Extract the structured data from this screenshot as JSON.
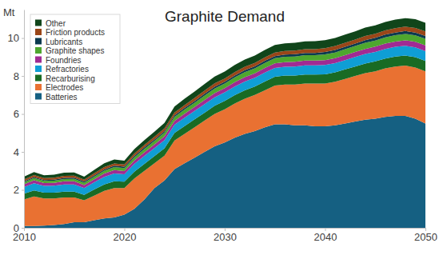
{
  "chart_data": {
    "type": "area",
    "title": "Graphite Demand",
    "ylabel": "Mt",
    "stacked": true,
    "legend": "upper left",
    "x": [
      2010,
      2011,
      2012,
      2013,
      2014,
      2015,
      2016,
      2017,
      2018,
      2019,
      2020,
      2021,
      2022,
      2023,
      2024,
      2025,
      2026,
      2027,
      2028,
      2029,
      2030,
      2031,
      2032,
      2033,
      2034,
      2035,
      2036,
      2037,
      2038,
      2039,
      2040,
      2041,
      2042,
      2043,
      2044,
      2045,
      2046,
      2047,
      2048,
      2049,
      2050
    ],
    "xlim": [
      2010,
      2050
    ],
    "xticks": [
      2010,
      2020,
      2030,
      2040,
      2050
    ],
    "ylim": [
      0,
      11.5
    ],
    "yticks": [
      0,
      2,
      4,
      6,
      8,
      10
    ],
    "series": [
      {
        "name": "Batteries",
        "color": "#156082",
        "values": [
          0.1,
          0.1,
          0.12,
          0.15,
          0.2,
          0.3,
          0.3,
          0.4,
          0.5,
          0.55,
          0.7,
          1.0,
          1.5,
          2.1,
          2.5,
          3.1,
          3.4,
          3.7,
          4.0,
          4.3,
          4.5,
          4.75,
          4.95,
          5.1,
          5.3,
          5.45,
          5.45,
          5.4,
          5.4,
          5.35,
          5.35,
          5.4,
          5.5,
          5.6,
          5.7,
          5.75,
          5.85,
          5.9,
          5.9,
          5.75,
          5.5
        ]
      },
      {
        "name": "Electrodes",
        "color": "#e97132",
        "values": [
          1.4,
          1.55,
          1.43,
          1.4,
          1.4,
          1.3,
          1.15,
          1.3,
          1.45,
          1.55,
          1.4,
          1.6,
          1.5,
          1.3,
          1.3,
          1.5,
          1.55,
          1.6,
          1.65,
          1.7,
          1.75,
          1.8,
          1.85,
          1.9,
          1.95,
          2.05,
          2.1,
          2.15,
          2.2,
          2.25,
          2.25,
          2.3,
          2.35,
          2.4,
          2.45,
          2.5,
          2.55,
          2.6,
          2.65,
          2.7,
          2.75
        ]
      },
      {
        "name": "Recarburising",
        "color": "#196b24",
        "values": [
          0.3,
          0.32,
          0.3,
          0.3,
          0.31,
          0.31,
          0.29,
          0.32,
          0.34,
          0.35,
          0.33,
          0.36,
          0.37,
          0.38,
          0.39,
          0.4,
          0.41,
          0.42,
          0.42,
          0.43,
          0.44,
          0.44,
          0.45,
          0.45,
          0.46,
          0.46,
          0.47,
          0.47,
          0.48,
          0.48,
          0.49,
          0.49,
          0.5,
          0.5,
          0.51,
          0.52,
          0.52,
          0.53,
          0.53,
          0.54,
          0.54
        ]
      },
      {
        "name": "Refractories",
        "color": "#0f9ed5",
        "values": [
          0.35,
          0.38,
          0.36,
          0.37,
          0.38,
          0.38,
          0.36,
          0.38,
          0.4,
          0.41,
          0.39,
          0.41,
          0.42,
          0.42,
          0.43,
          0.43,
          0.44,
          0.44,
          0.45,
          0.45,
          0.45,
          0.46,
          0.46,
          0.46,
          0.47,
          0.47,
          0.47,
          0.48,
          0.48,
          0.48,
          0.49,
          0.49,
          0.49,
          0.5,
          0.5,
          0.5,
          0.51,
          0.51,
          0.51,
          0.52,
          0.52
        ]
      },
      {
        "name": "Foundries",
        "color": "#a02b93",
        "values": [
          0.15,
          0.16,
          0.15,
          0.15,
          0.16,
          0.16,
          0.15,
          0.16,
          0.17,
          0.18,
          0.17,
          0.18,
          0.19,
          0.19,
          0.2,
          0.2,
          0.21,
          0.21,
          0.22,
          0.22,
          0.22,
          0.23,
          0.23,
          0.23,
          0.24,
          0.24,
          0.24,
          0.25,
          0.25,
          0.25,
          0.26,
          0.26,
          0.26,
          0.27,
          0.27,
          0.28,
          0.28,
          0.28,
          0.29,
          0.29,
          0.3
        ]
      },
      {
        "name": "Graphite shapes",
        "color": "#4ea72e",
        "values": [
          0.1,
          0.11,
          0.11,
          0.12,
          0.12,
          0.13,
          0.13,
          0.14,
          0.15,
          0.16,
          0.16,
          0.17,
          0.18,
          0.19,
          0.2,
          0.21,
          0.22,
          0.22,
          0.23,
          0.24,
          0.24,
          0.25,
          0.26,
          0.26,
          0.27,
          0.27,
          0.28,
          0.28,
          0.29,
          0.29,
          0.3,
          0.3,
          0.31,
          0.31,
          0.32,
          0.32,
          0.33,
          0.33,
          0.34,
          0.34,
          0.35
        ]
      },
      {
        "name": "Lubricants",
        "color": "#0b3a4f",
        "values": [
          0.05,
          0.05,
          0.05,
          0.05,
          0.06,
          0.06,
          0.06,
          0.06,
          0.07,
          0.07,
          0.07,
          0.07,
          0.08,
          0.08,
          0.08,
          0.09,
          0.09,
          0.09,
          0.1,
          0.1,
          0.1,
          0.1,
          0.11,
          0.11,
          0.11,
          0.11,
          0.12,
          0.12,
          0.12,
          0.12,
          0.13,
          0.13,
          0.13,
          0.13,
          0.14,
          0.14,
          0.14,
          0.14,
          0.15,
          0.15,
          0.15
        ]
      },
      {
        "name": "Friction products",
        "color": "#9a4618",
        "values": [
          0.1,
          0.11,
          0.1,
          0.1,
          0.11,
          0.11,
          0.1,
          0.11,
          0.12,
          0.12,
          0.12,
          0.13,
          0.13,
          0.14,
          0.14,
          0.15,
          0.15,
          0.16,
          0.16,
          0.17,
          0.17,
          0.17,
          0.18,
          0.18,
          0.18,
          0.19,
          0.19,
          0.19,
          0.2,
          0.2,
          0.2,
          0.21,
          0.21,
          0.21,
          0.22,
          0.22,
          0.22,
          0.23,
          0.23,
          0.24,
          0.24
        ]
      },
      {
        "name": "Other",
        "color": "#10451a",
        "values": [
          0.15,
          0.16,
          0.15,
          0.16,
          0.17,
          0.17,
          0.16,
          0.18,
          0.2,
          0.21,
          0.2,
          0.23,
          0.25,
          0.27,
          0.29,
          0.31,
          0.33,
          0.34,
          0.35,
          0.36,
          0.37,
          0.38,
          0.38,
          0.39,
          0.39,
          0.4,
          0.4,
          0.41,
          0.41,
          0.42,
          0.42,
          0.42,
          0.43,
          0.43,
          0.44,
          0.44,
          0.45,
          0.45,
          0.45,
          0.46,
          0.46
        ]
      }
    ]
  }
}
